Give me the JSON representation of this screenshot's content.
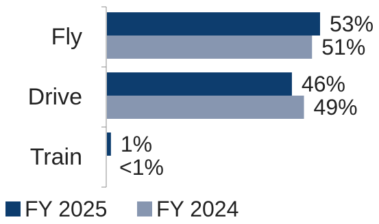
{
  "chart_data": {
    "type": "bar",
    "orientation": "horizontal",
    "categories": [
      "Fly",
      "Drive",
      "Train"
    ],
    "series": [
      {
        "name": "FY 2025",
        "color": "#0d3d6e",
        "values": [
          53,
          46,
          1
        ],
        "labels": [
          "53%",
          "46%",
          "1%"
        ]
      },
      {
        "name": "FY 2024",
        "color": "#8796b0",
        "values": [
          51,
          49,
          0.5
        ],
        "labels": [
          "51%",
          "49%",
          "<1%"
        ]
      }
    ],
    "xlim": [
      0,
      53
    ],
    "grid": false,
    "legend_position": "bottom-left"
  }
}
